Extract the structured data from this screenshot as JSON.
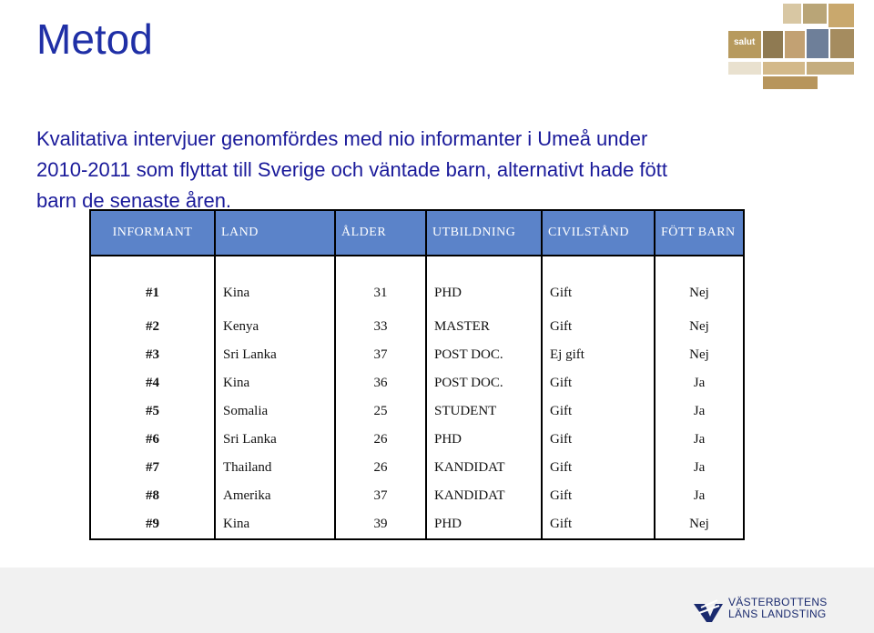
{
  "slide": {
    "title": "Metod",
    "intro_lines": [
      "Kvalitativa intervjuer genomfördes med nio informanter i Umeå under",
      "2010-2011 som flyttat till Sverige och väntade barn, alternativt hade fött",
      "barn de senaste åren."
    ]
  },
  "table": {
    "headers": [
      "INFORMANT",
      "LAND",
      "ÅLDER",
      "UTBILDNING",
      "CIVILSTÅND",
      "FÖTT BARN"
    ],
    "rows": [
      [
        "#1",
        "Kina",
        "31",
        "PHD",
        "Gift",
        "Nej"
      ],
      [
        "#2",
        "Kenya",
        "33",
        "MASTER",
        "Gift",
        "Nej"
      ],
      [
        "#3",
        "Sri Lanka",
        "37",
        "POST DOC.",
        "Ej gift",
        "Nej"
      ],
      [
        "#4",
        "Kina",
        "36",
        "POST DOC.",
        "Gift",
        "Ja"
      ],
      [
        "#5",
        "Somalia",
        "25",
        "STUDENT",
        "Gift",
        "Ja"
      ],
      [
        "#6",
        "Sri Lanka",
        "26",
        "PHD",
        "Gift",
        "Ja"
      ],
      [
        "#7",
        "Thailand",
        "26",
        "KANDIDAT",
        "Gift",
        "Ja"
      ],
      [
        "#8",
        "Amerika",
        "37",
        "KANDIDAT",
        "Gift",
        "Ja"
      ],
      [
        "#9",
        "Kina",
        "39",
        "PHD",
        "Gift",
        "Nej"
      ]
    ]
  },
  "collage": {
    "label": "salut"
  },
  "logo": {
    "line1": "VÄSTERBOTTENS",
    "line2": "LÄNS LANDSTING"
  },
  "colors": {
    "title": "#1f2fa6",
    "header_bg": "#5b83c9",
    "logo": "#1a2a6e"
  }
}
